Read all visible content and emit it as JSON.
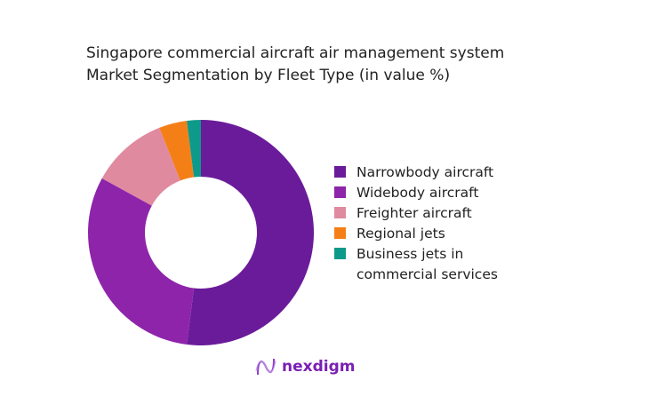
{
  "chart_data": {
    "type": "pie",
    "donut": true,
    "title": "Singapore commercial aircraft air management system Market Segmentation by Fleet Type (in value %)",
    "title_lines": [
      "Singapore commercial aircraft air management system",
      "Market Segmentation by Fleet Type (in value %)"
    ],
    "categories": [
      "Narrowbody aircraft",
      "Widebody aircraft",
      "Freighter aircraft",
      "Regional jets",
      "Business jets in commercial services"
    ],
    "values": [
      52,
      31,
      11,
      4,
      2
    ],
    "colors": [
      "#6a1b9a",
      "#8e24aa",
      "#e08aa0",
      "#f57f17",
      "#0e9a8a"
    ],
    "legend_placement": "right"
  },
  "logo": {
    "text": "nexdigm"
  }
}
